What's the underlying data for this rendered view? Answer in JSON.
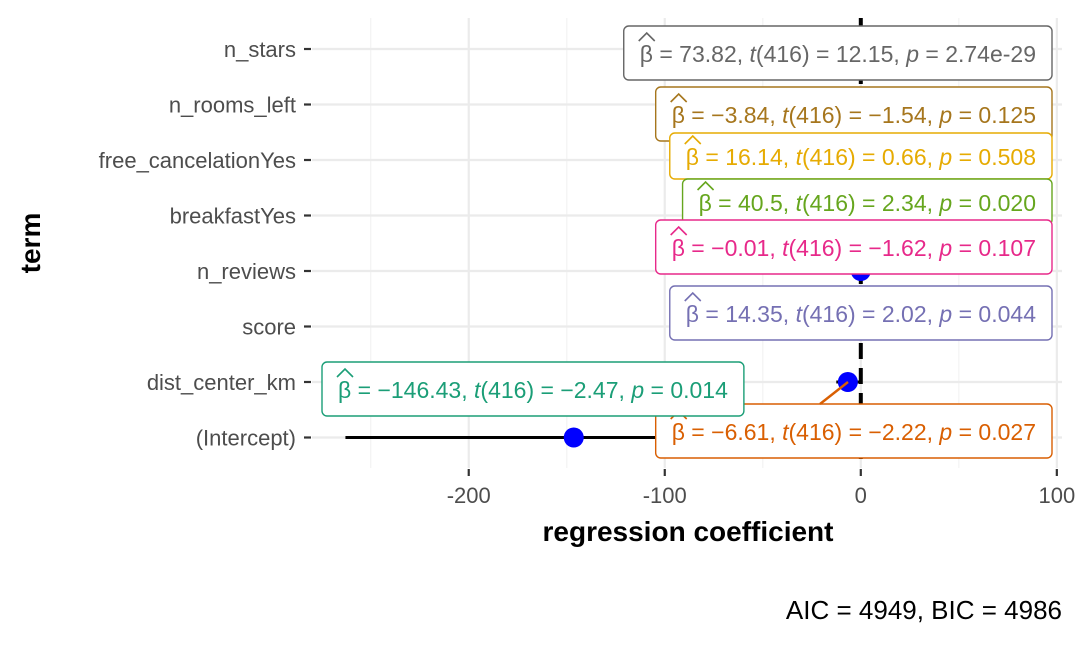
{
  "chart_data": {
    "type": "forest",
    "xlabel": "regression coefficient",
    "ylabel": "term",
    "xlim": [
      -275,
      100
    ],
    "x_ticks": [
      -200,
      -100,
      0,
      100
    ],
    "x_tick_labels": [
      "-200",
      "-100",
      "0",
      "100"
    ],
    "reference_line": 0,
    "grid": true,
    "caption": "AIC = 4949, BIC = 4986",
    "terms": [
      {
        "term": "n_stars",
        "estimate": 73.82,
        "ci": [
          61.9,
          85.8
        ],
        "color": "#666666",
        "label": {
          "beta": "= 73.82,",
          "t_df": "(416)",
          "t": "= 12.15,",
          "p": "= 2.74e-29"
        }
      },
      {
        "term": "n_rooms_left",
        "estimate": -3.84,
        "ci": [
          -8.7,
          1.0
        ],
        "color": "#A6761D",
        "label": {
          "beta": "= −3.84,",
          "t_df": "(416)",
          "t": "= −1.54,",
          "p": "= 0.125"
        }
      },
      {
        "term": "free_cancelationYes",
        "estimate": 16.14,
        "ci": [
          -31.9,
          64.2
        ],
        "color": "#E6AB02",
        "label": {
          "beta": "= 16.14,",
          "t_df": "(416)",
          "t": "= 0.66,",
          "p": "= 0.508"
        }
      },
      {
        "term": "breakfastYes",
        "estimate": 40.5,
        "ci": [
          6.5,
          74.5
        ],
        "color": "#66A61E",
        "label": {
          "beta": "= 40.5,",
          "t_df": "(416)",
          "t": "= 2.34,",
          "p": "= 0.020"
        }
      },
      {
        "term": "n_reviews",
        "estimate": -0.01,
        "ci": [
          -0.02,
          0.0
        ],
        "color": "#E7298A",
        "label": {
          "beta": "= −0.01,",
          "t_df": "(416)",
          "t": "= −1.62,",
          "p": "= 0.107"
        }
      },
      {
        "term": "score",
        "estimate": 14.35,
        "ci": [
          0.4,
          28.3
        ],
        "color": "#7570B3",
        "label": {
          "beta": "= 14.35,",
          "t_df": "(416)",
          "t": "= 2.02,",
          "p": "= 0.044"
        }
      },
      {
        "term": "dist_center_km",
        "estimate": -6.61,
        "ci": [
          -12.5,
          -0.7
        ],
        "color": "#D95F02",
        "label": {
          "beta": "= −6.61,",
          "t_df": "(416)",
          "t": "= −2.22,",
          "p": "= 0.027"
        }
      },
      {
        "term": "(Intercept)",
        "estimate": -146.43,
        "ci": [
          -262.9,
          -30.0
        ],
        "color": "#1B9E77",
        "label": {
          "beta": "= −146.43,",
          "t_df": "(416)",
          "t": "= −2.47,",
          "p": "= 0.014"
        }
      }
    ]
  }
}
